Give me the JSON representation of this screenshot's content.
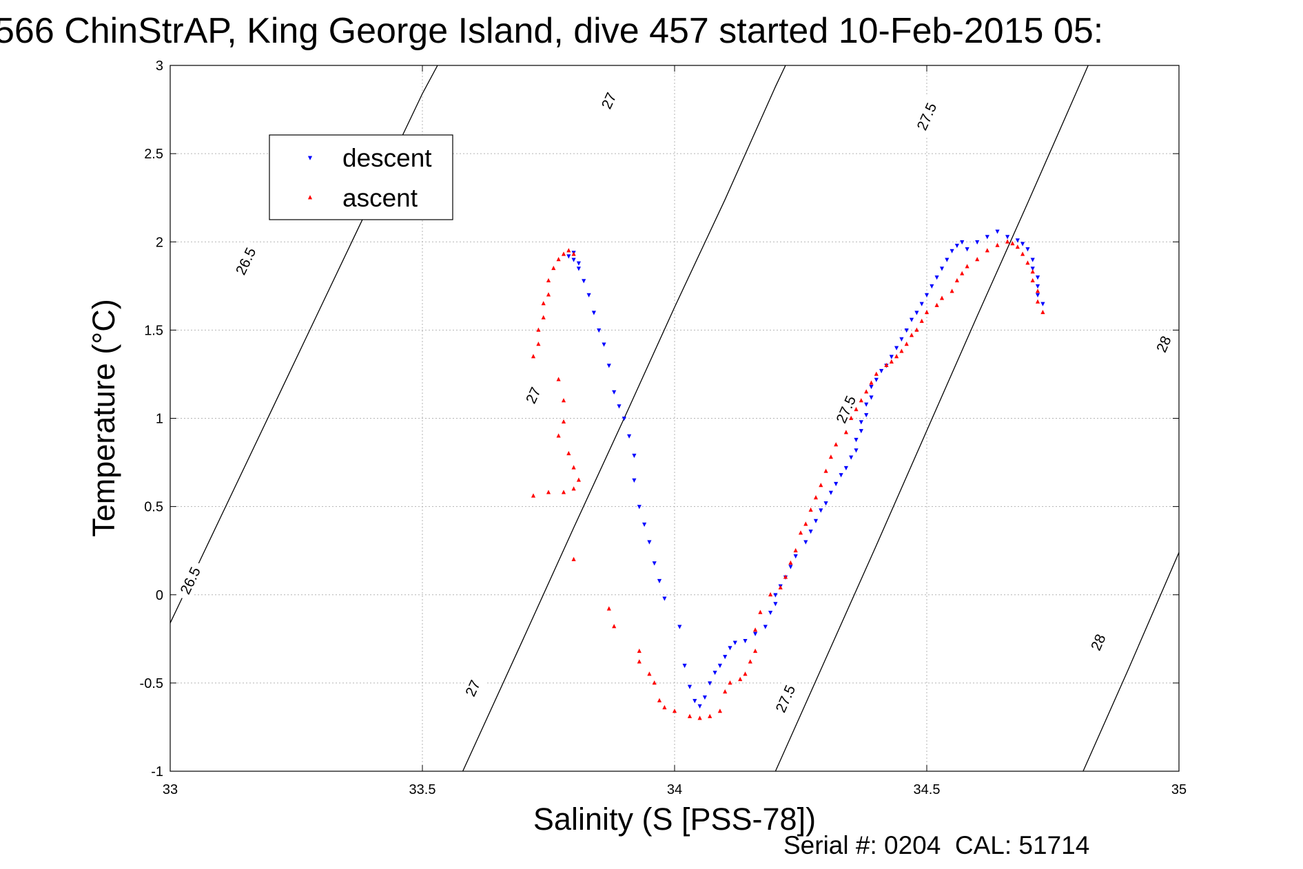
{
  "chart_data": {
    "type": "scatter",
    "title": "566 ChinStrAP, King George Island, dive 457 started 10-Feb-2015 05:",
    "xlabel": "Salinity (S [PSS-78])",
    "ylabel": "Temperature (°C)",
    "xlim": [
      33,
      35
    ],
    "ylim": [
      -1,
      3
    ],
    "xticks": [
      33,
      33.5,
      34,
      34.5,
      35
    ],
    "xtick_labels": [
      "33",
      "33.5",
      "34",
      "34.5",
      "35"
    ],
    "yticks": [
      -1,
      -0.5,
      0,
      0.5,
      1,
      1.5,
      2,
      2.5,
      3
    ],
    "ytick_labels": [
      "-1",
      "-0.5",
      "0",
      "0.5",
      "1",
      "1.5",
      "2",
      "2.5",
      "3"
    ],
    "grid": true,
    "legend_position": "top-left",
    "footer": "Serial #: 0204  CAL: 51714",
    "isopycnals": [
      {
        "value": "26.5",
        "points": [
          [
            33.0,
            -0.16
          ],
          [
            33.1,
            0.44
          ],
          [
            33.2,
            1.04
          ],
          [
            33.3,
            1.64
          ],
          [
            33.4,
            2.24
          ],
          [
            33.5,
            2.84
          ],
          [
            33.53,
            3.0
          ]
        ],
        "labels": [
          [
            33.04,
            0.08
          ],
          [
            33.15,
            1.89
          ]
        ]
      },
      {
        "value": "27",
        "points": [
          [
            33.58,
            -1.0
          ],
          [
            33.7,
            -0.25
          ],
          [
            33.8,
            0.38
          ],
          [
            33.9,
            1.0
          ],
          [
            34.0,
            1.63
          ],
          [
            34.1,
            2.24
          ],
          [
            34.2,
            2.88
          ],
          [
            34.22,
            3.0
          ]
        ],
        "labels": [
          [
            33.6,
            -0.53
          ],
          [
            33.72,
            1.13
          ],
          [
            33.87,
            2.8
          ]
        ]
      },
      {
        "value": "27.5",
        "points": [
          [
            34.2,
            -1.0
          ],
          [
            34.3,
            -0.36
          ],
          [
            34.4,
            0.28
          ],
          [
            34.5,
            0.93
          ],
          [
            34.6,
            1.58
          ],
          [
            34.7,
            2.22
          ],
          [
            34.8,
            2.87
          ],
          [
            34.82,
            3.0
          ]
        ],
        "labels": [
          [
            34.22,
            -0.59
          ],
          [
            34.34,
            1.05
          ],
          [
            34.5,
            2.71
          ]
        ]
      },
      {
        "value": "28",
        "points": [
          [
            34.81,
            -1.0
          ],
          [
            34.9,
            -0.42
          ],
          [
            35.0,
            0.24
          ],
          [
            35.1,
            0.9
          ],
          [
            35.2,
            1.56
          ],
          [
            35.3,
            2.22
          ]
        ],
        "labels": [
          [
            34.84,
            -0.27
          ],
          [
            34.97,
            1.42
          ]
        ]
      }
    ],
    "series": [
      {
        "name": "descent",
        "color": "#0000ff",
        "marker": "triangle-down",
        "points": [
          [
            33.8,
            1.94
          ],
          [
            33.79,
            1.92
          ],
          [
            33.8,
            1.9
          ],
          [
            33.81,
            1.88
          ],
          [
            33.81,
            1.85
          ],
          [
            33.82,
            1.78
          ],
          [
            33.83,
            1.7
          ],
          [
            33.84,
            1.6
          ],
          [
            33.85,
            1.5
          ],
          [
            33.86,
            1.42
          ],
          [
            33.87,
            1.3
          ],
          [
            33.88,
            1.15
          ],
          [
            33.89,
            1.07
          ],
          [
            33.9,
            1.0
          ],
          [
            33.91,
            0.9
          ],
          [
            33.92,
            0.79
          ],
          [
            33.92,
            0.65
          ],
          [
            33.93,
            0.5
          ],
          [
            33.94,
            0.4
          ],
          [
            33.95,
            0.3
          ],
          [
            33.96,
            0.18
          ],
          [
            33.97,
            0.08
          ],
          [
            33.98,
            -0.02
          ],
          [
            34.01,
            -0.18
          ],
          [
            34.02,
            -0.4
          ],
          [
            34.03,
            -0.52
          ],
          [
            34.04,
            -0.6
          ],
          [
            34.05,
            -0.63
          ],
          [
            34.06,
            -0.58
          ],
          [
            34.07,
            -0.5
          ],
          [
            34.08,
            -0.44
          ],
          [
            34.09,
            -0.4
          ],
          [
            34.1,
            -0.35
          ],
          [
            34.11,
            -0.3
          ],
          [
            34.12,
            -0.27
          ],
          [
            34.14,
            -0.26
          ],
          [
            34.16,
            -0.22
          ],
          [
            34.18,
            -0.18
          ],
          [
            34.19,
            -0.1
          ],
          [
            34.2,
            -0.05
          ],
          [
            34.2,
            0.0
          ],
          [
            34.21,
            0.05
          ],
          [
            34.22,
            0.1
          ],
          [
            34.23,
            0.16
          ],
          [
            34.24,
            0.22
          ],
          [
            34.26,
            0.3
          ],
          [
            34.27,
            0.36
          ],
          [
            34.28,
            0.42
          ],
          [
            34.29,
            0.48
          ],
          [
            34.3,
            0.52
          ],
          [
            34.31,
            0.58
          ],
          [
            34.32,
            0.63
          ],
          [
            34.33,
            0.68
          ],
          [
            34.34,
            0.72
          ],
          [
            34.35,
            0.78
          ],
          [
            34.36,
            0.82
          ],
          [
            34.36,
            0.88
          ],
          [
            34.37,
            0.93
          ],
          [
            34.37,
            0.98
          ],
          [
            34.38,
            1.02
          ],
          [
            34.38,
            1.08
          ],
          [
            34.39,
            1.12
          ],
          [
            34.39,
            1.18
          ],
          [
            34.4,
            1.22
          ],
          [
            34.41,
            1.27
          ],
          [
            34.42,
            1.3
          ],
          [
            34.43,
            1.35
          ],
          [
            34.44,
            1.4
          ],
          [
            34.45,
            1.45
          ],
          [
            34.46,
            1.5
          ],
          [
            34.47,
            1.56
          ],
          [
            34.48,
            1.6
          ],
          [
            34.49,
            1.65
          ],
          [
            34.5,
            1.7
          ],
          [
            34.51,
            1.75
          ],
          [
            34.52,
            1.8
          ],
          [
            34.53,
            1.85
          ],
          [
            34.54,
            1.9
          ],
          [
            34.55,
            1.95
          ],
          [
            34.56,
            1.98
          ],
          [
            34.57,
            2.0
          ],
          [
            34.58,
            1.96
          ],
          [
            34.6,
            2.0
          ],
          [
            34.62,
            2.03
          ],
          [
            34.64,
            2.06
          ],
          [
            34.66,
            2.03
          ],
          [
            34.68,
            2.01
          ],
          [
            34.69,
            1.99
          ],
          [
            34.7,
            1.96
          ],
          [
            34.71,
            1.9
          ],
          [
            34.71,
            1.85
          ],
          [
            34.72,
            1.8
          ],
          [
            34.72,
            1.75
          ],
          [
            34.72,
            1.7
          ],
          [
            34.73,
            1.65
          ]
        ]
      },
      {
        "name": "ascent",
        "color": "#ff0000",
        "marker": "triangle-up",
        "points": [
          [
            33.8,
            1.93
          ],
          [
            33.79,
            1.95
          ],
          [
            33.78,
            1.93
          ],
          [
            33.77,
            1.9
          ],
          [
            33.76,
            1.85
          ],
          [
            33.75,
            1.78
          ],
          [
            33.75,
            1.7
          ],
          [
            33.74,
            1.65
          ],
          [
            33.74,
            1.57
          ],
          [
            33.73,
            1.5
          ],
          [
            33.73,
            1.42
          ],
          [
            33.72,
            1.35
          ],
          [
            33.77,
            1.22
          ],
          [
            33.78,
            1.1
          ],
          [
            33.78,
            0.98
          ],
          [
            33.77,
            0.9
          ],
          [
            33.79,
            0.8
          ],
          [
            33.8,
            0.72
          ],
          [
            33.81,
            0.65
          ],
          [
            33.8,
            0.6
          ],
          [
            33.78,
            0.58
          ],
          [
            33.75,
            0.58
          ],
          [
            33.72,
            0.56
          ],
          [
            33.8,
            0.2
          ],
          [
            33.87,
            -0.08
          ],
          [
            33.88,
            -0.18
          ],
          [
            33.93,
            -0.32
          ],
          [
            33.93,
            -0.38
          ],
          [
            33.95,
            -0.45
          ],
          [
            33.96,
            -0.5
          ],
          [
            33.97,
            -0.6
          ],
          [
            33.98,
            -0.64
          ],
          [
            34.0,
            -0.66
          ],
          [
            34.03,
            -0.69
          ],
          [
            34.05,
            -0.7
          ],
          [
            34.07,
            -0.69
          ],
          [
            34.09,
            -0.66
          ],
          [
            34.1,
            -0.55
          ],
          [
            34.11,
            -0.5
          ],
          [
            34.13,
            -0.48
          ],
          [
            34.14,
            -0.45
          ],
          [
            34.15,
            -0.38
          ],
          [
            34.16,
            -0.32
          ],
          [
            34.16,
            -0.2
          ],
          [
            34.17,
            -0.1
          ],
          [
            34.19,
            0.0
          ],
          [
            34.21,
            0.04
          ],
          [
            34.22,
            0.1
          ],
          [
            34.23,
            0.18
          ],
          [
            34.24,
            0.25
          ],
          [
            34.25,
            0.35
          ],
          [
            34.26,
            0.4
          ],
          [
            34.27,
            0.48
          ],
          [
            34.28,
            0.55
          ],
          [
            34.29,
            0.62
          ],
          [
            34.3,
            0.7
          ],
          [
            34.31,
            0.78
          ],
          [
            34.32,
            0.85
          ],
          [
            34.34,
            0.92
          ],
          [
            34.35,
            1.0
          ],
          [
            34.36,
            1.05
          ],
          [
            34.37,
            1.1
          ],
          [
            34.38,
            1.15
          ],
          [
            34.39,
            1.2
          ],
          [
            34.4,
            1.25
          ],
          [
            34.42,
            1.3
          ],
          [
            34.43,
            1.32
          ],
          [
            34.44,
            1.35
          ],
          [
            34.45,
            1.38
          ],
          [
            34.46,
            1.42
          ],
          [
            34.47,
            1.47
          ],
          [
            34.48,
            1.5
          ],
          [
            34.49,
            1.55
          ],
          [
            34.5,
            1.6
          ],
          [
            34.52,
            1.64
          ],
          [
            34.53,
            1.68
          ],
          [
            34.55,
            1.72
          ],
          [
            34.56,
            1.78
          ],
          [
            34.57,
            1.82
          ],
          [
            34.58,
            1.86
          ],
          [
            34.6,
            1.9
          ],
          [
            34.62,
            1.95
          ],
          [
            34.64,
            1.98
          ],
          [
            34.66,
            2.0
          ],
          [
            34.67,
            1.99
          ],
          [
            34.68,
            1.97
          ],
          [
            34.69,
            1.93
          ],
          [
            34.7,
            1.88
          ],
          [
            34.71,
            1.83
          ],
          [
            34.71,
            1.78
          ],
          [
            34.72,
            1.72
          ],
          [
            34.72,
            1.66
          ],
          [
            34.73,
            1.6
          ]
        ]
      }
    ]
  }
}
